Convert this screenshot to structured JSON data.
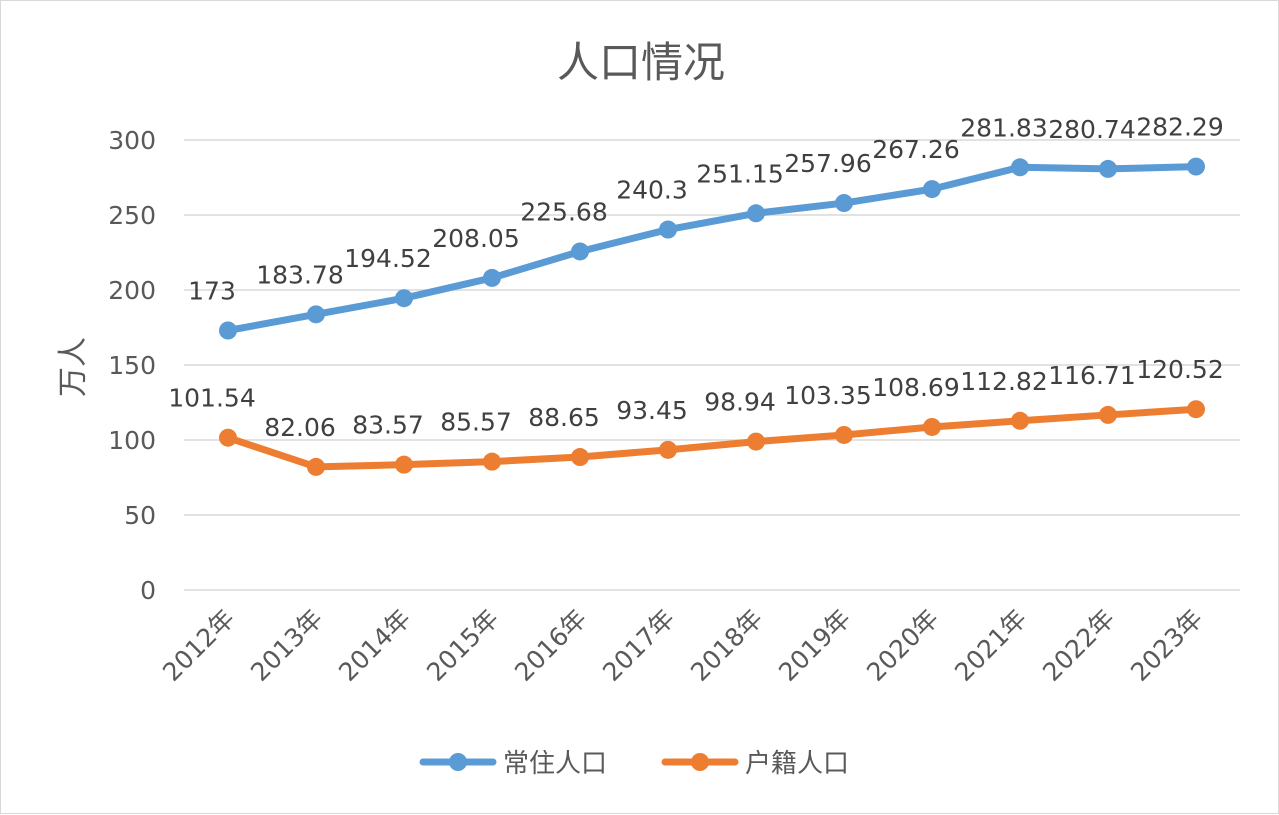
{
  "chart_data": {
    "type": "line",
    "title": "人口情况",
    "xlabel": "",
    "ylabel": "万人",
    "ylim": [
      0,
      300
    ],
    "yticks": [
      0,
      50,
      100,
      150,
      200,
      250,
      300
    ],
    "grid": true,
    "legend_position": "bottom",
    "categories": [
      "2012年",
      "2013年",
      "2014年",
      "2015年",
      "2016年",
      "2017年",
      "2018年",
      "2019年",
      "2020年",
      "2021年",
      "2022年",
      "2023年"
    ],
    "series": [
      {
        "name": "常住人口",
        "color": "#5b9bd5",
        "values": [
          173,
          183.78,
          194.52,
          208.05,
          225.68,
          240.3,
          251.15,
          257.96,
          267.26,
          281.83,
          280.74,
          282.29
        ],
        "labels": [
          "173",
          "183.78",
          "194.52",
          "208.05",
          "225.68",
          "240.3",
          "251.15",
          "257.96",
          "267.26",
          "281.83",
          "280.74",
          "282.29"
        ]
      },
      {
        "name": "户籍人口",
        "color": "#ed7d31",
        "values": [
          101.54,
          82.06,
          83.57,
          85.57,
          88.65,
          93.45,
          98.94,
          103.35,
          108.69,
          112.82,
          116.71,
          120.52
        ],
        "labels": [
          "101.54",
          "82.06",
          "83.57",
          "85.57",
          "88.65",
          "93.45",
          "98.94",
          "103.35",
          "108.69",
          "112.82",
          "116.71",
          "120.52"
        ]
      }
    ]
  }
}
